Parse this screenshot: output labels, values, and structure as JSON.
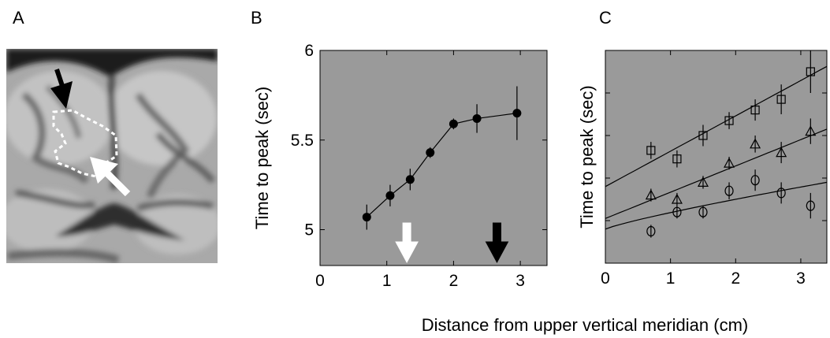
{
  "figure": {
    "panel_letters": [
      "A",
      "B",
      "C"
    ],
    "shared_xlabel": "Distance from upper vertical meridian (cm)"
  },
  "colors": {
    "plot_background": "#9a9a9a",
    "marker": "#000000",
    "arrow_black": "#000000",
    "arrow_white": "#ffffff"
  },
  "chart_data": [
    {
      "panel": "B",
      "type": "line",
      "xlabel": "",
      "ylabel": "Time to peak (sec)",
      "xlim": [
        0,
        3.4
      ],
      "ylim": [
        4.8,
        6.0
      ],
      "xticks": [
        0,
        1,
        2,
        3
      ],
      "yticks": [
        5,
        5.5,
        6
      ],
      "ytick_labels": [
        "5",
        "5.5",
        "6"
      ],
      "grid": false,
      "series": [
        {
          "marker": "filled-circle",
          "x": [
            0.7,
            1.05,
            1.35,
            1.65,
            2.0,
            2.35,
            2.95
          ],
          "y": [
            5.07,
            5.19,
            5.28,
            5.43,
            5.59,
            5.62,
            5.65
          ],
          "err": [
            0.07,
            0.06,
            0.06,
            0.03,
            0.03,
            0.08,
            0.15
          ]
        }
      ],
      "annotations": [
        {
          "type": "arrow-down",
          "color": "white",
          "x": 1.3
        },
        {
          "type": "arrow-down",
          "color": "black",
          "x": 2.65
        }
      ]
    },
    {
      "panel": "C",
      "type": "scatter",
      "xlabel": "",
      "ylabel": "Time to peak (sec)",
      "xlim": [
        0,
        3.4
      ],
      "ylim": [
        0,
        1
      ],
      "xticks": [
        0,
        1,
        2,
        3
      ],
      "yticks": [],
      "grid": false,
      "series": [
        {
          "marker": "open-square",
          "x": [
            0.7,
            1.1,
            1.5,
            1.9,
            2.3,
            2.7,
            3.15
          ],
          "y": [
            0.53,
            0.49,
            0.6,
            0.67,
            0.72,
            0.77,
            0.9
          ],
          "err": [
            0.04,
            0.04,
            0.05,
            0.04,
            0.05,
            0.07,
            0.1
          ],
          "fit": [
            0.36,
            0.925
          ]
        },
        {
          "marker": "open-triangle",
          "x": [
            0.7,
            1.1,
            1.5,
            1.9,
            2.3,
            2.7,
            3.15
          ],
          "y": [
            0.32,
            0.3,
            0.38,
            0.47,
            0.56,
            0.52,
            0.62
          ],
          "err": [
            0.03,
            0.03,
            0.03,
            0.03,
            0.04,
            0.05,
            0.06
          ],
          "fit": [
            0.21,
            0.63
          ]
        },
        {
          "marker": "open-circle",
          "x": [
            0.7,
            1.1,
            1.5,
            1.9,
            2.3,
            2.7,
            3.15
          ],
          "y": [
            0.15,
            0.24,
            0.24,
            0.34,
            0.39,
            0.33,
            0.27
          ],
          "err": [
            0.03,
            0.03,
            0.03,
            0.04,
            0.05,
            0.05,
            0.06
          ],
          "fit": [
            0.16,
            0.38
          ]
        }
      ]
    }
  ]
}
